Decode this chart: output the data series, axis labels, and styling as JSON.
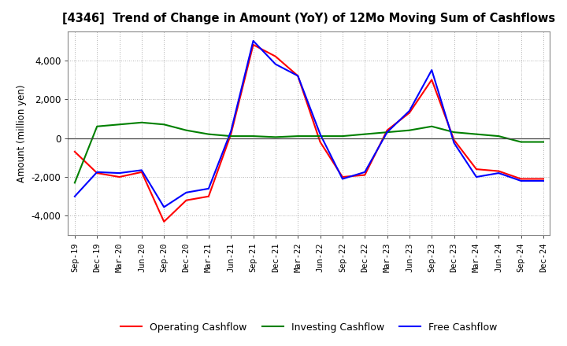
{
  "title": "[4346]  Trend of Change in Amount (YoY) of 12Mo Moving Sum of Cashflows",
  "ylabel": "Amount (million yen)",
  "x_labels": [
    "Sep-19",
    "Dec-19",
    "Mar-20",
    "Jun-20",
    "Sep-20",
    "Dec-20",
    "Mar-21",
    "Jun-21",
    "Sep-21",
    "Dec-21",
    "Mar-22",
    "Jun-22",
    "Sep-22",
    "Dec-22",
    "Mar-23",
    "Jun-23",
    "Sep-23",
    "Dec-23",
    "Mar-24",
    "Jun-24",
    "Sep-24",
    "Dec-24"
  ],
  "operating": [
    -700,
    -1800,
    -2000,
    -1750,
    -4300,
    -3200,
    -3000,
    200,
    4800,
    4200,
    3200,
    -200,
    -2000,
    -1900,
    400,
    1300,
    3000,
    -100,
    -1600,
    -1700,
    -2100,
    -2100
  ],
  "investing": [
    -2300,
    600,
    700,
    800,
    700,
    400,
    200,
    100,
    100,
    50,
    100,
    100,
    100,
    200,
    300,
    400,
    600,
    300,
    200,
    100,
    -200,
    -200
  ],
  "free": [
    -3000,
    -1750,
    -1800,
    -1650,
    -3550,
    -2800,
    -2600,
    350,
    5000,
    3800,
    3200,
    200,
    -2100,
    -1750,
    300,
    1400,
    3500,
    -250,
    -2000,
    -1800,
    -2200,
    -2200
  ],
  "ylim": [
    -5000,
    5500
  ],
  "yticks": [
    -4000,
    -2000,
    0,
    2000,
    4000
  ],
  "operating_color": "#ff0000",
  "investing_color": "#008000",
  "free_color": "#0000ff",
  "background_color": "#ffffff",
  "grid_color": "#999999"
}
